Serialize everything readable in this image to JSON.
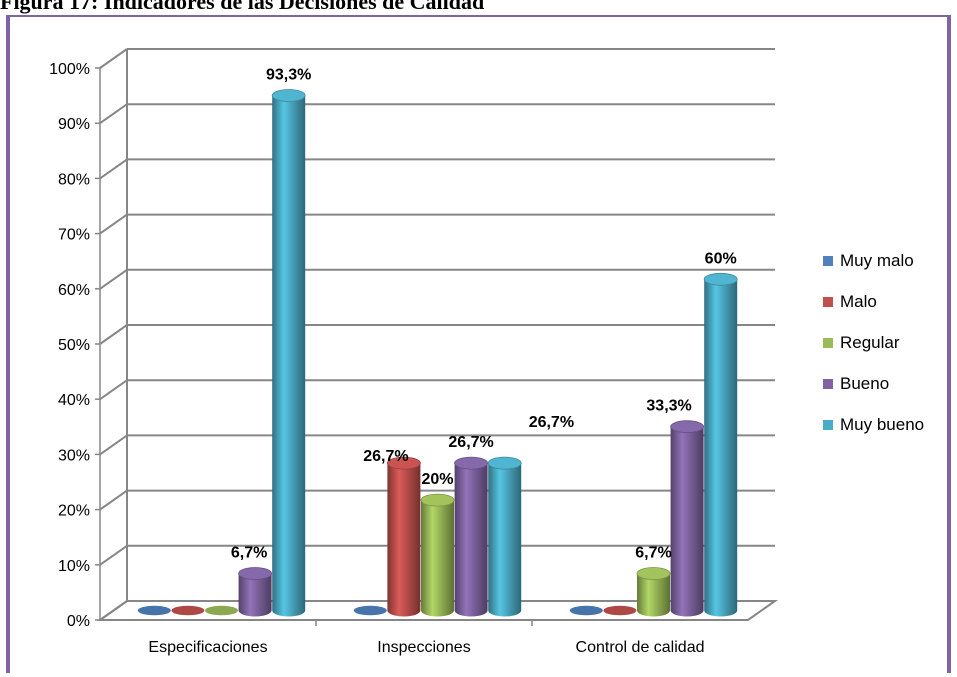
{
  "figure": {
    "caption": "Figura 17: Indicadores de las Decisiones de Calidad"
  },
  "chart_data": {
    "type": "bar",
    "categories": [
      "Especificaciones",
      "Inspecciones",
      "Control de calidad"
    ],
    "series": [
      {
        "name": "Muy malo",
        "color": "#4f81bd",
        "values": [
          0,
          0,
          0
        ]
      },
      {
        "name": "Malo",
        "color": "#c0504d",
        "values": [
          0,
          26.7,
          0
        ]
      },
      {
        "name": "Regular",
        "color": "#9bbb59",
        "values": [
          0,
          20,
          6.7
        ]
      },
      {
        "name": "Bueno",
        "color": "#8064a2",
        "values": [
          6.7,
          26.7,
          33.3
        ]
      },
      {
        "name": "Muy bueno",
        "color": "#4bacc6",
        "values": [
          93.3,
          26.7,
          60
        ]
      }
    ],
    "data_labels": [
      {
        "text": "93,3%",
        "category": 0,
        "series": 4
      },
      {
        "text": "6,7%",
        "category": 0,
        "series": 3
      },
      {
        "text": "26,7%",
        "category": 1,
        "series": 1
      },
      {
        "text": "20%",
        "category": 1,
        "series": 2
      },
      {
        "text": "26,7%",
        "category": 1,
        "series": 3
      },
      {
        "text": "26,7%",
        "category": 1,
        "series": 4
      },
      {
        "text": "60%",
        "category": 2,
        "series": 4
      },
      {
        "text": "33,3%",
        "category": 2,
        "series": 3
      },
      {
        "text": "6,7%",
        "category": 2,
        "series": 2
      }
    ],
    "yticks": [
      "0%",
      "10%",
      "20%",
      "30%",
      "40%",
      "50%",
      "60%",
      "70%",
      "80%",
      "90%",
      "100%"
    ],
    "ylim": [
      0,
      100
    ],
    "grid": true,
    "legend_position": "right",
    "style": "3d-cylinder"
  }
}
